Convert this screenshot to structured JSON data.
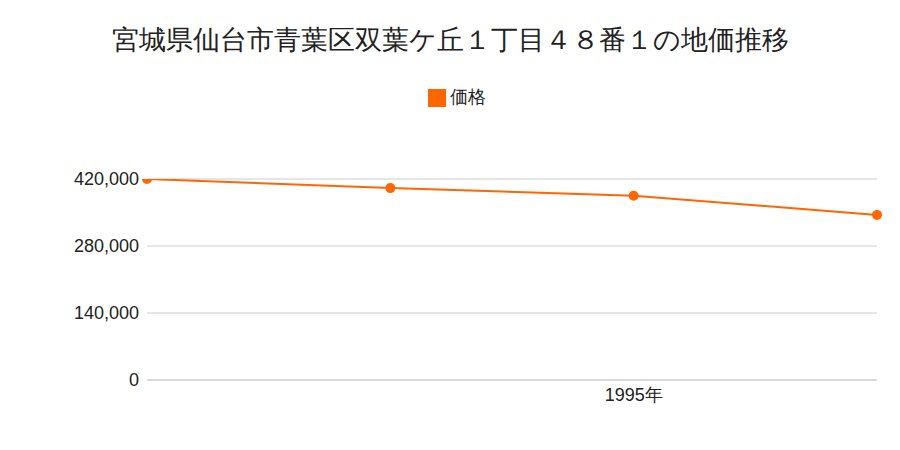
{
  "chart_data": {
    "type": "line",
    "title": "宮城県仙台市青葉区双葉ケ丘１丁目４８番１の地価推移",
    "categories": [
      null,
      null,
      "1995年",
      null
    ],
    "series": [
      {
        "name": "価格",
        "color": "#ff6600",
        "values": [
          420000,
          401000,
          385000,
          345000
        ]
      }
    ],
    "ylim": [
      0,
      420000
    ],
    "yticks": [
      0,
      {
        "value": 140000,
        "label": "140,000"
      },
      {
        "value": 280000,
        "label": "280,000"
      },
      {
        "value": 420000,
        "label": "420,000"
      }
    ],
    "grid": true,
    "legend": "top"
  }
}
